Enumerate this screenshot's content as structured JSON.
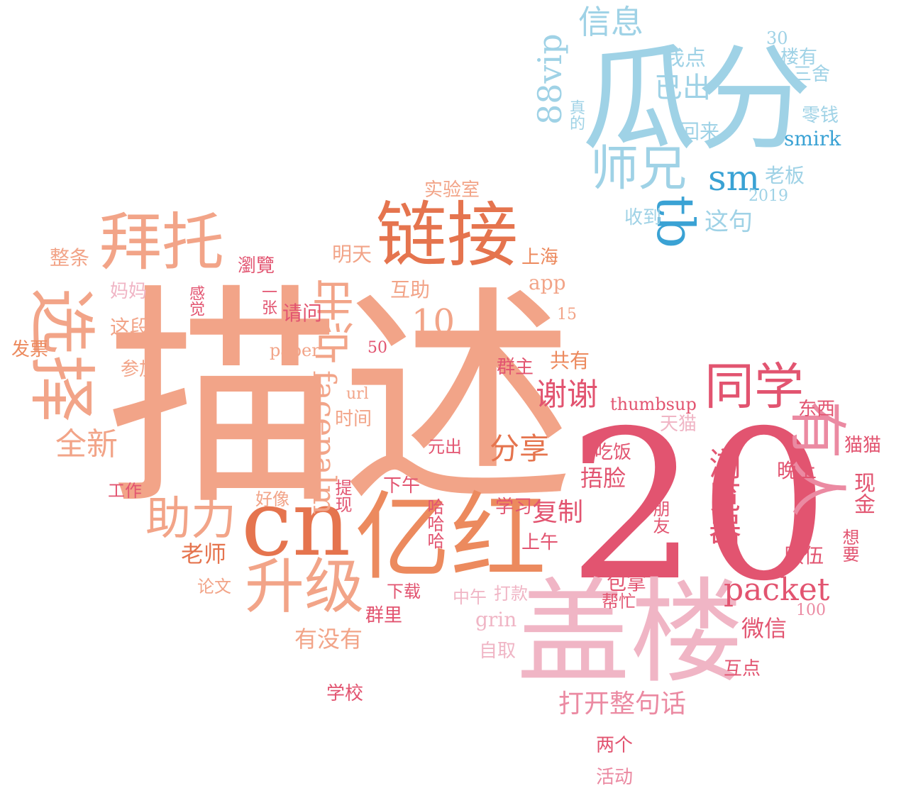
{
  "palette": {
    "coral": "#f2a488",
    "deep_coral": "#e5744e",
    "orange": "#ec8a5e",
    "crimson": "#e25470",
    "rose": "#eb8aa2",
    "pink": "#f0b5c5",
    "sky": "#9fd2e6",
    "blue": "#3aa2d4"
  },
  "words": [
    {
      "t": "描述"
    },
    {
      "t": "20"
    },
    {
      "t": "盖楼"
    },
    {
      "t": "亿红"
    },
    {
      "t": "cn"
    },
    {
      "t": "链接"
    },
    {
      "t": "瓜分"
    },
    {
      "t": "拜托"
    },
    {
      "t": "选择"
    },
    {
      "t": "点击"
    },
    {
      "t": "升级"
    },
    {
      "t": "助力"
    },
    {
      "t": "同学"
    },
    {
      "t": "有人"
    },
    {
      "t": "浏览器"
    },
    {
      "t": "facepalm"
    },
    {
      "t": "packet"
    },
    {
      "t": "sm"
    },
    {
      "t": "tb"
    },
    {
      "t": "师兄"
    },
    {
      "t": "信息"
    },
    {
      "t": "88vip"
    },
    {
      "t": "已出"
    },
    {
      "t": "我点"
    },
    {
      "t": "30"
    },
    {
      "t": "楼有"
    },
    {
      "t": "三舍"
    },
    {
      "t": "零钱"
    },
    {
      "t": "真的"
    },
    {
      "t": "回来"
    },
    {
      "t": "smirk"
    },
    {
      "t": "老板"
    },
    {
      "t": "2019"
    },
    {
      "t": "收到"
    },
    {
      "t": "这句"
    },
    {
      "t": "实验室"
    },
    {
      "t": "整条"
    },
    {
      "t": "瀏覽"
    },
    {
      "t": "明天"
    },
    {
      "t": "上海"
    },
    {
      "t": "app"
    },
    {
      "t": "妈妈"
    },
    {
      "t": "感觉"
    },
    {
      "t": "一张"
    },
    {
      "t": "互助"
    },
    {
      "t": "10"
    },
    {
      "t": "15"
    },
    {
      "t": "这段"
    },
    {
      "t": "请问"
    },
    {
      "t": "发票"
    },
    {
      "t": "paper"
    },
    {
      "t": "50"
    },
    {
      "t": "参加"
    },
    {
      "t": "群主"
    },
    {
      "t": "共有"
    },
    {
      "t": "url"
    },
    {
      "t": "谢谢"
    },
    {
      "t": "thumbsup"
    },
    {
      "t": "东西"
    },
    {
      "t": "全新"
    },
    {
      "t": "时间"
    },
    {
      "t": "天猫"
    },
    {
      "t": "元出"
    },
    {
      "t": "分享"
    },
    {
      "t": "吃饭"
    },
    {
      "t": "猫猫"
    },
    {
      "t": "工作"
    },
    {
      "t": "提现"
    },
    {
      "t": "下午"
    },
    {
      "t": "捂脸"
    },
    {
      "t": "晚上"
    },
    {
      "t": "现金"
    },
    {
      "t": "好像"
    },
    {
      "t": "哈哈哈"
    },
    {
      "t": "学习"
    },
    {
      "t": "复制"
    },
    {
      "t": "朋友"
    },
    {
      "t": "老师"
    },
    {
      "t": "上午"
    },
    {
      "t": "队伍"
    },
    {
      "t": "想要"
    },
    {
      "t": "论文"
    },
    {
      "t": "下载"
    },
    {
      "t": "中午"
    },
    {
      "t": "打款"
    },
    {
      "t": "包拿"
    },
    {
      "t": "帮忙"
    },
    {
      "t": "100"
    },
    {
      "t": "群里"
    },
    {
      "t": "grin"
    },
    {
      "t": "微信"
    },
    {
      "t": "有没有"
    },
    {
      "t": "自取"
    },
    {
      "t": "互点"
    },
    {
      "t": "打开整句话"
    },
    {
      "t": "学校"
    },
    {
      "t": "两个"
    },
    {
      "t": "活动"
    }
  ]
}
